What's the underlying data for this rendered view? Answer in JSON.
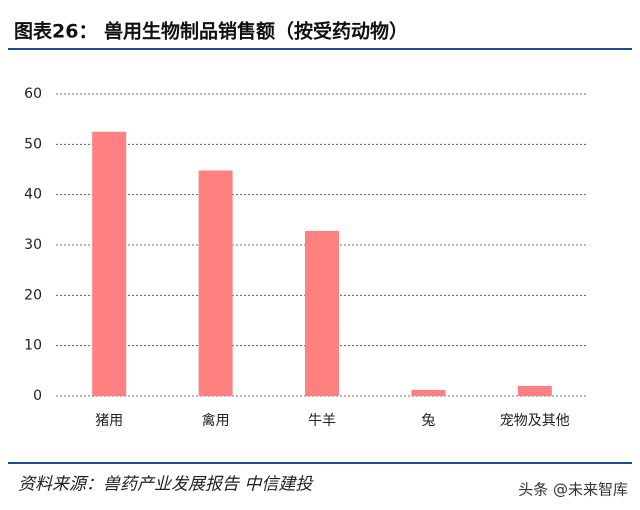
{
  "chart_data": {
    "type": "bar",
    "title": "图表26：  兽用生物制品销售额（按受药动物）",
    "categories": [
      "猪用",
      "禽用",
      "牛羊",
      "兔",
      "宠物及其他"
    ],
    "values": [
      52.5,
      44.8,
      32.8,
      1.2,
      2.0
    ],
    "color": "#ff8080",
    "ylim": [
      0,
      60
    ],
    "yticks": [
      0,
      10,
      20,
      30,
      40,
      50,
      60
    ],
    "grid": true,
    "source": "资料来源：兽药产业发展报告  中信建投",
    "watermark": "头条 @未来智库"
  }
}
